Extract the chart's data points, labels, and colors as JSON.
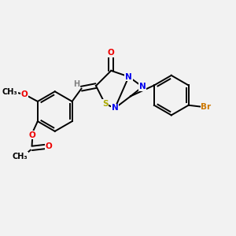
{
  "background_color": "#f2f2f2",
  "atom_colors": {
    "C": "#000000",
    "H": "#808080",
    "N": "#0000ee",
    "O": "#ee0000",
    "S": "#aaaa00",
    "Br": "#cc7700"
  },
  "bond_color": "#000000",
  "figsize": [
    3.0,
    3.0
  ],
  "dpi": 100,
  "lw": 1.4,
  "fontsize": 7.5
}
